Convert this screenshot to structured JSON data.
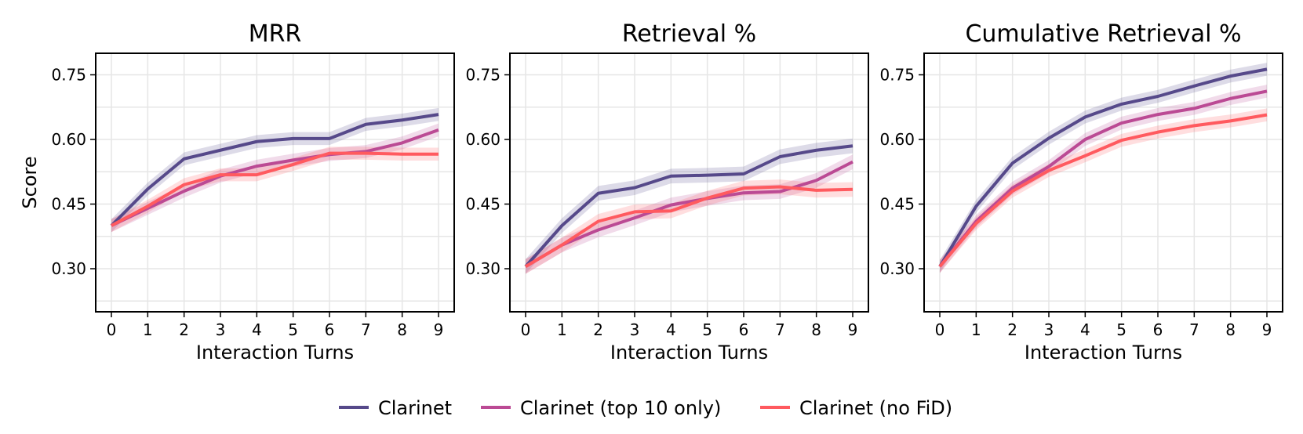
{
  "colors": {
    "series": [
      "#56498a",
      "#bb4a94",
      "#ff5a5f"
    ],
    "grid": "#e6e6e6",
    "background": "#ffffff",
    "axis": "#000000"
  },
  "legend": {
    "placement": "bottom-center",
    "items": [
      "Clarinet",
      "Clarinet (top 10 only)",
      "Clarinet (no FiD)"
    ]
  },
  "chart_data": [
    {
      "type": "line",
      "title": "MRR",
      "xlabel": "Interaction Turns",
      "ylabel": "Score",
      "x": [
        0,
        1,
        2,
        3,
        4,
        5,
        6,
        7,
        8,
        9
      ],
      "xticks": [
        "0",
        "1",
        "2",
        "3",
        "4",
        "5",
        "6",
        "7",
        "8",
        "9"
      ],
      "yticks": [
        "0.30",
        "0.45",
        "0.60",
        "0.75"
      ],
      "ylim": [
        0.2,
        0.8
      ],
      "grid": true,
      "series": [
        {
          "name": "Clarinet",
          "values": [
            0.4,
            0.485,
            0.555,
            0.575,
            0.595,
            0.602,
            0.602,
            0.635,
            0.645,
            0.658
          ],
          "band": 0.015
        },
        {
          "name": "Clarinet (top 10 only)",
          "values": [
            0.4,
            0.44,
            0.48,
            0.515,
            0.538,
            0.552,
            0.565,
            0.572,
            0.592,
            0.622
          ],
          "band": 0.015
        },
        {
          "name": "Clarinet (no FiD)",
          "values": [
            0.4,
            0.445,
            0.495,
            0.518,
            0.518,
            0.542,
            0.568,
            0.568,
            0.566,
            0.566
          ],
          "band": 0.015
        }
      ]
    },
    {
      "type": "line",
      "title": "Retrieval %",
      "xlabel": "Interaction Turns",
      "ylabel": "",
      "x": [
        0,
        1,
        2,
        3,
        4,
        5,
        6,
        7,
        8,
        9
      ],
      "xticks": [
        "0",
        "1",
        "2",
        "3",
        "4",
        "5",
        "6",
        "7",
        "8",
        "9"
      ],
      "yticks": [
        "0.30",
        "0.45",
        "0.60",
        "0.75"
      ],
      "ylim": [
        0.2,
        0.8
      ],
      "grid": true,
      "series": [
        {
          "name": "Clarinet",
          "values": [
            0.305,
            0.4,
            0.475,
            0.488,
            0.515,
            0.517,
            0.52,
            0.56,
            0.575,
            0.585
          ],
          "band": 0.017
        },
        {
          "name": "Clarinet (top 10 only)",
          "values": [
            0.305,
            0.355,
            0.39,
            0.418,
            0.448,
            0.463,
            0.476,
            0.479,
            0.505,
            0.548
          ],
          "band": 0.017
        },
        {
          "name": "Clarinet (no FiD)",
          "values": [
            0.305,
            0.355,
            0.41,
            0.432,
            0.434,
            0.464,
            0.487,
            0.49,
            0.482,
            0.484
          ],
          "band": 0.017
        }
      ]
    },
    {
      "type": "line",
      "title": "Cumulative Retrieval %",
      "xlabel": "Interaction Turns",
      "ylabel": "",
      "x": [
        0,
        1,
        2,
        3,
        4,
        5,
        6,
        7,
        8,
        9
      ],
      "xticks": [
        "0",
        "1",
        "2",
        "3",
        "4",
        "5",
        "6",
        "7",
        "8",
        "9"
      ],
      "yticks": [
        "0.30",
        "0.45",
        "0.60",
        "0.75"
      ],
      "ylim": [
        0.2,
        0.8
      ],
      "grid": true,
      "series": [
        {
          "name": "Clarinet",
          "values": [
            0.305,
            0.445,
            0.545,
            0.603,
            0.652,
            0.682,
            0.7,
            0.724,
            0.747,
            0.763
          ],
          "band": 0.015
        },
        {
          "name": "Clarinet (top 10 only)",
          "values": [
            0.305,
            0.41,
            0.487,
            0.537,
            0.6,
            0.638,
            0.658,
            0.672,
            0.695,
            0.712
          ],
          "band": 0.015
        },
        {
          "name": "Clarinet (no FiD)",
          "values": [
            0.305,
            0.405,
            0.48,
            0.528,
            0.562,
            0.598,
            0.617,
            0.632,
            0.643,
            0.657
          ],
          "band": 0.015
        }
      ]
    }
  ]
}
